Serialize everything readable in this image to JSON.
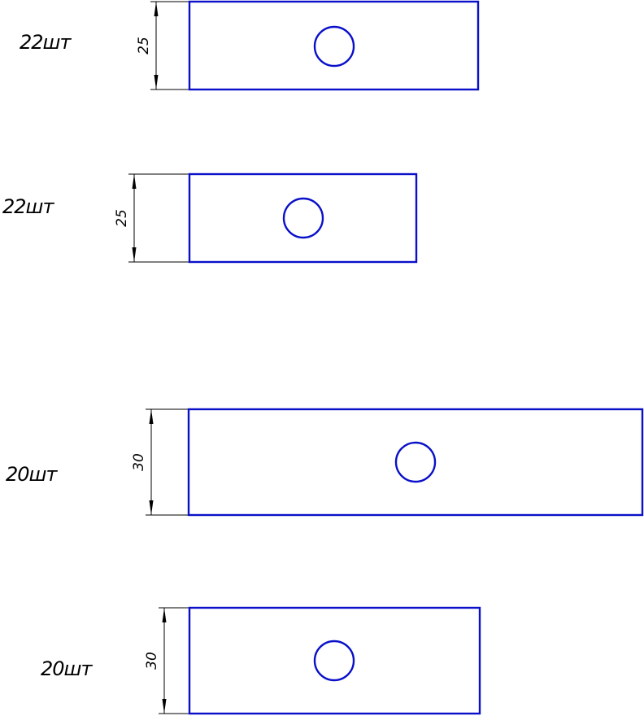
{
  "colors": {
    "part_outline": "#0a10c8",
    "dimension": "#000000",
    "background": "#ffffff"
  },
  "parts": [
    {
      "quantity": "22шт",
      "dimension": "25"
    },
    {
      "quantity": "22шт",
      "dimension": "25"
    },
    {
      "quantity": "20шт",
      "dimension": "30"
    },
    {
      "quantity": "20шт",
      "dimension": "30"
    }
  ]
}
